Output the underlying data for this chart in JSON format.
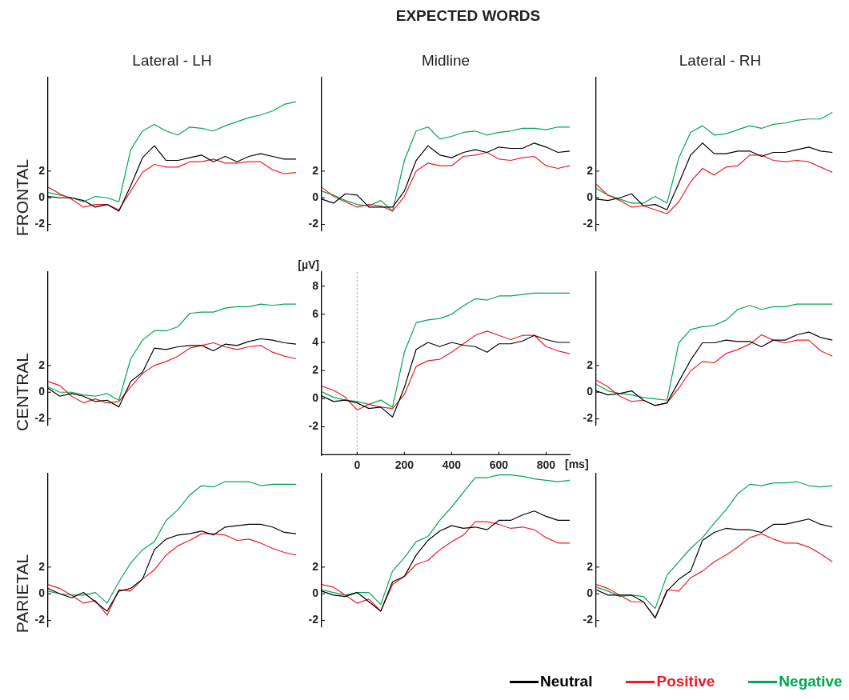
{
  "chart_data": [
    {
      "type": "line",
      "subtitle": "Lateral - LH",
      "ylabel": "FRONTAL",
      "categories": [
        null,
        null,
        null,
        null,
        null,
        null,
        null,
        null,
        null,
        null,
        null,
        null,
        null,
        null,
        null,
        null,
        null,
        null,
        null,
        null,
        null,
        null
      ],
      "ylim": [
        -2.5,
        9
      ],
      "yticks": [
        -2,
        0,
        2
      ],
      "tick_labels": "y",
      "series": [
        {
          "color": "#000000",
          "values": [
            0.1,
            0,
            0,
            -0.2,
            -0.7,
            -0.5,
            -1.0,
            0.9,
            3.0,
            3.9,
            2.8,
            2.8,
            3.0,
            3.2,
            2.7,
            3.1,
            2.7,
            3.1,
            3.3,
            3.1,
            2.9,
            2.9
          ]
        },
        {
          "color": "#ed1c24",
          "values": [
            0.8,
            0.3,
            -0.1,
            -0.7,
            -0.5,
            -0.5,
            -0.9,
            0.5,
            1.9,
            2.5,
            2.3,
            2.3,
            2.7,
            2.7,
            2.9,
            2.6,
            2.6,
            2.7,
            2.7,
            2.1,
            1.8,
            1.9
          ]
        },
        {
          "color": "#00a651",
          "values": [
            0.4,
            0.2,
            0,
            -0.3,
            0.1,
            0,
            -0.3,
            3.6,
            5.0,
            5.5,
            5.0,
            4.7,
            5.3,
            5.2,
            5.0,
            5.4,
            5.7,
            6.0,
            6.2,
            6.5,
            7.0,
            7.2
          ]
        }
      ]
    },
    {
      "type": "line",
      "title": "EXPECTED WORDS",
      "subtitle": "Midline",
      "categories": [
        null,
        null,
        null,
        null,
        null,
        null,
        null,
        null,
        null,
        null,
        null,
        null,
        null,
        null,
        null,
        null,
        null,
        null,
        null,
        null,
        null,
        null
      ],
      "ylim": [
        -2.5,
        9
      ],
      "yticks": [
        -2,
        0,
        2
      ],
      "tick_labels": "y",
      "series": [
        {
          "color": "#000000",
          "values": [
            -0.1,
            -0.4,
            0.3,
            0.2,
            -0.7,
            -0.7,
            -0.7,
            0.5,
            2.8,
            3.9,
            3.2,
            3.0,
            3.4,
            3.6,
            3.4,
            3.8,
            3.7,
            3.7,
            4.1,
            3.8,
            3.4,
            3.5
          ]
        },
        {
          "color": "#ed1c24",
          "values": [
            0.8,
            0.1,
            -0.3,
            -0.7,
            -0.5,
            -0.6,
            -1.0,
            0.1,
            2.0,
            2.6,
            2.4,
            2.4,
            3.1,
            3.2,
            3.4,
            2.9,
            2.8,
            3.0,
            3.1,
            2.4,
            2.2,
            2.4
          ]
        },
        {
          "color": "#00a651",
          "values": [
            0.5,
            0.2,
            -0.2,
            -0.5,
            -0.6,
            -0.2,
            -1.0,
            2.8,
            5.0,
            5.3,
            4.4,
            4.6,
            4.9,
            5.0,
            4.7,
            4.9,
            5.0,
            5.2,
            5.2,
            5.1,
            5.3,
            5.3
          ]
        }
      ]
    },
    {
      "type": "line",
      "subtitle": "Lateral - RH",
      "categories": [
        null,
        null,
        null,
        null,
        null,
        null,
        null,
        null,
        null,
        null,
        null,
        null,
        null,
        null,
        null,
        null,
        null,
        null,
        null,
        null,
        null,
        null
      ],
      "ylim": [
        -2.5,
        9
      ],
      "yticks": [
        -2,
        0,
        2
      ],
      "tick_labels": "y",
      "series": [
        {
          "color": "#000000",
          "values": [
            -0.1,
            -0.2,
            0,
            0.3,
            -0.6,
            -0.5,
            -0.9,
            1.1,
            3.2,
            4.1,
            3.3,
            3.3,
            3.5,
            3.5,
            3.1,
            3.4,
            3.4,
            3.6,
            3.8,
            3.5,
            3.4,
            null
          ]
        },
        {
          "color": "#ed1c24",
          "values": [
            1.0,
            0.2,
            -0.2,
            -0.7,
            -0.6,
            -0.9,
            -1.2,
            -0.3,
            1.2,
            2.2,
            1.7,
            2.3,
            2.4,
            3.2,
            3.2,
            2.8,
            2.7,
            2.8,
            2.7,
            2.3,
            1.9,
            null
          ]
        },
        {
          "color": "#00a651",
          "values": [
            0.7,
            0.2,
            -0.1,
            -0.4,
            -0.4,
            0.1,
            -0.4,
            3.0,
            4.9,
            5.4,
            4.7,
            4.8,
            5.1,
            5.4,
            5.2,
            5.5,
            5.6,
            5.8,
            5.9,
            5.9,
            6.4,
            null
          ]
        }
      ]
    },
    {
      "type": "line",
      "ylabel": "CENTRAL",
      "categories": [
        null,
        null,
        null,
        null,
        null,
        null,
        null,
        null,
        null,
        null,
        null,
        null,
        null,
        null,
        null,
        null,
        null,
        null,
        null,
        null,
        null,
        null
      ],
      "ylim": [
        -2.5,
        9
      ],
      "yticks": [
        -2,
        0,
        2
      ],
      "tick_labels": "y",
      "series": [
        {
          "color": "#000000",
          "values": [
            0.3,
            -0.3,
            -0.1,
            -0.3,
            -0.7,
            -0.6,
            -1.1,
            0.8,
            1.5,
            3.3,
            3.2,
            3.4,
            3.5,
            3.5,
            3.1,
            3.6,
            3.5,
            3.8,
            4.0,
            3.9,
            3.7,
            3.6
          ]
        },
        {
          "color": "#ed1c24",
          "values": [
            0.8,
            0.5,
            -0.3,
            -0.8,
            -0.5,
            -0.8,
            -0.7,
            0.4,
            1.4,
            2.0,
            2.3,
            2.7,
            3.3,
            3.5,
            3.7,
            3.4,
            3.2,
            3.4,
            3.5,
            3.0,
            2.7,
            2.5
          ]
        },
        {
          "color": "#00a651",
          "values": [
            0.4,
            0,
            0,
            -0.2,
            -0.3,
            -0.1,
            -0.6,
            2.5,
            3.9,
            4.6,
            4.6,
            4.9,
            5.9,
            6.0,
            6.0,
            6.3,
            6.4,
            6.4,
            6.6,
            6.5,
            6.6,
            6.6
          ]
        }
      ]
    },
    {
      "type": "line",
      "xlabel": "[ms]",
      "ylabel": "[µV]",
      "x": [
        -150,
        -100,
        -50,
        0,
        50,
        100,
        150,
        200,
        250,
        300,
        350,
        400,
        450,
        500,
        550,
        600,
        650,
        700,
        750,
        800,
        850,
        900
      ],
      "xlim": [
        -150,
        900
      ],
      "xticks": [
        0,
        200,
        400,
        600,
        800
      ],
      "ylim": [
        -4,
        9
      ],
      "yticks": [
        -2,
        0,
        2,
        4,
        6,
        8
      ],
      "ref_lines": [
        {
          "axis": "x",
          "value": 0,
          "color": "#999999",
          "line_style": "dotted"
        }
      ],
      "series": [
        {
          "color": "#000000",
          "values": [
            0.2,
            -0.2,
            -0.1,
            -0.3,
            -0.7,
            -0.6,
            -1.3,
            0.8,
            3.5,
            4.0,
            3.7,
            4.0,
            3.8,
            3.7,
            3.3,
            3.9,
            3.9,
            4.1,
            4.5,
            4.2,
            4.0,
            4.0
          ]
        },
        {
          "color": "#ed1c24",
          "values": [
            0.9,
            0.6,
            0.1,
            -0.8,
            -0.4,
            -0.6,
            -0.7,
            0.3,
            2.3,
            2.7,
            2.8,
            3.3,
            3.9,
            4.5,
            4.8,
            4.5,
            4.2,
            4.5,
            4.5,
            3.7,
            3.4,
            3.2
          ]
        },
        {
          "color": "#00a651",
          "values": [
            0.5,
            0.1,
            -0.1,
            -0.2,
            -0.4,
            -0.1,
            -0.6,
            3.3,
            5.4,
            5.6,
            5.7,
            6.0,
            6.6,
            7.1,
            7.0,
            7.3,
            7.3,
            7.4,
            7.5,
            7.5,
            7.5,
            7.5
          ]
        }
      ]
    },
    {
      "type": "line",
      "categories": [
        null,
        null,
        null,
        null,
        null,
        null,
        null,
        null,
        null,
        null,
        null,
        null,
        null,
        null,
        null,
        null,
        null,
        null,
        null,
        null,
        null,
        null
      ],
      "ylim": [
        -2.5,
        9
      ],
      "yticks": [
        -2,
        0,
        2
      ],
      "tick_labels": "y",
      "series": [
        {
          "color": "#000000",
          "values": [
            0.1,
            -0.2,
            -0.1,
            0.1,
            -0.6,
            -1.0,
            -0.8,
            0.8,
            2.4,
            3.7,
            3.7,
            3.9,
            3.8,
            3.8,
            3.4,
            3.9,
            3.9,
            4.3,
            4.5,
            4.1,
            3.9,
            null
          ]
        },
        {
          "color": "#ed1c24",
          "values": [
            0.9,
            0.4,
            -0.3,
            -0.7,
            -0.6,
            -1.0,
            -0.8,
            0.3,
            1.6,
            2.3,
            2.2,
            2.9,
            3.2,
            3.6,
            4.3,
            3.9,
            3.7,
            3.9,
            3.9,
            3.1,
            2.7,
            null
          ]
        },
        {
          "color": "#00a651",
          "values": [
            0.6,
            0.1,
            -0.1,
            -0.2,
            -0.4,
            -0.5,
            -0.6,
            3.7,
            4.7,
            4.9,
            5.0,
            5.4,
            6.2,
            6.5,
            6.2,
            6.4,
            6.4,
            6.6,
            6.6,
            6.6,
            6.6,
            null
          ]
        }
      ]
    },
    {
      "type": "line",
      "ylabel": "PARIETAL",
      "categories": [
        null,
        null,
        null,
        null,
        null,
        null,
        null,
        null,
        null,
        null,
        null,
        null,
        null,
        null,
        null,
        null,
        null,
        null,
        null,
        null,
        null,
        null
      ],
      "ylim": [
        -2.5,
        9
      ],
      "yticks": [
        -2,
        0,
        2
      ],
      "tick_labels": "y",
      "series": [
        {
          "color": "#000000",
          "values": [
            0.4,
            0,
            -0.3,
            0.1,
            -0.6,
            -1.3,
            0.2,
            0.4,
            1.1,
            3.3,
            4.1,
            4.4,
            4.5,
            4.7,
            4.4,
            5.0,
            5.1,
            5.2,
            5.2,
            5.0,
            4.6,
            4.5
          ]
        },
        {
          "color": "#ed1c24",
          "values": [
            0.7,
            0.4,
            -0.1,
            -0.7,
            -0.5,
            -1.6,
            0.3,
            0.2,
            1.1,
            1.8,
            2.9,
            3.6,
            4.0,
            4.5,
            4.5,
            4.4,
            4.0,
            4.1,
            3.8,
            3.4,
            3.1,
            2.9
          ]
        },
        {
          "color": "#00a651",
          "values": [
            0.2,
            0,
            -0.1,
            -0.1,
            0.1,
            -0.7,
            0.9,
            2.3,
            3.3,
            3.9,
            5.5,
            6.3,
            7.4,
            8.1,
            8.0,
            8.4,
            8.4,
            8.4,
            8.1,
            8.2,
            8.2,
            8.2
          ]
        }
      ]
    },
    {
      "type": "line",
      "legend": "bottom right",
      "categories": [
        null,
        null,
        null,
        null,
        null,
        null,
        null,
        null,
        null,
        null,
        null,
        null,
        null,
        null,
        null,
        null,
        null,
        null,
        null,
        null,
        null,
        null
      ],
      "ylim": [
        -2.5,
        9
      ],
      "yticks": [
        -2,
        0,
        2
      ],
      "tick_labels": "y",
      "series": [
        {
          "name": "Neutral",
          "color": "#000000",
          "values": [
            0.2,
            -0.1,
            -0.2,
            0.1,
            -0.6,
            -1.3,
            0.9,
            1.3,
            2.9,
            4.0,
            4.7,
            5.1,
            4.9,
            5.0,
            4.8,
            5.5,
            5.5,
            5.9,
            6.2,
            5.8,
            5.5,
            5.5
          ]
        },
        {
          "name": "Positive",
          "color": "#ed1c24",
          "values": [
            0.7,
            0.5,
            -0.1,
            -0.7,
            -0.4,
            -1.3,
            0.7,
            1.3,
            2.2,
            2.5,
            3.3,
            3.9,
            4.4,
            5.4,
            5.4,
            5.2,
            4.9,
            5.0,
            4.8,
            4.2,
            3.8,
            3.8
          ]
        },
        {
          "name": "Negative",
          "color": "#00a651",
          "values": [
            0.3,
            0.1,
            -0.1,
            0.1,
            0.1,
            -0.8,
            1.7,
            2.7,
            3.9,
            4.3,
            5.5,
            6.5,
            7.6,
            8.7,
            8.7,
            8.9,
            8.9,
            8.8,
            8.6,
            8.5,
            8.4,
            8.5
          ]
        }
      ]
    },
    {
      "type": "line",
      "categories": [
        null,
        null,
        null,
        null,
        null,
        null,
        null,
        null,
        null,
        null,
        null,
        null,
        null,
        null,
        null,
        null,
        null,
        null,
        null,
        null,
        null,
        null
      ],
      "ylim": [
        -2.5,
        9
      ],
      "yticks": [
        -2,
        0,
        2
      ],
      "tick_labels": "y",
      "series": [
        {
          "color": "#000000",
          "values": [
            0.3,
            -0.1,
            -0.1,
            -0.1,
            -0.6,
            -1.8,
            0.2,
            1.1,
            1.7,
            4.0,
            4.6,
            4.9,
            4.8,
            4.8,
            4.6,
            5.2,
            5.2,
            5.4,
            5.6,
            5.2,
            5.0,
            null
          ]
        },
        {
          "color": "#ed1c24",
          "values": [
            0.7,
            0.4,
            -0.1,
            -0.6,
            -0.6,
            -1.8,
            0.3,
            0.2,
            1.2,
            1.7,
            2.4,
            2.9,
            3.5,
            4.2,
            4.5,
            4.1,
            3.8,
            3.8,
            3.5,
            3.0,
            2.4,
            null
          ]
        },
        {
          "color": "#00a651",
          "values": [
            0.5,
            0.2,
            -0.2,
            -0.1,
            -0.2,
            -1.1,
            1.4,
            2.4,
            3.4,
            4.2,
            5.3,
            6.3,
            7.5,
            8.2,
            8.1,
            8.3,
            8.3,
            8.4,
            8.1,
            8.0,
            8.1,
            null
          ]
        }
      ]
    }
  ]
}
